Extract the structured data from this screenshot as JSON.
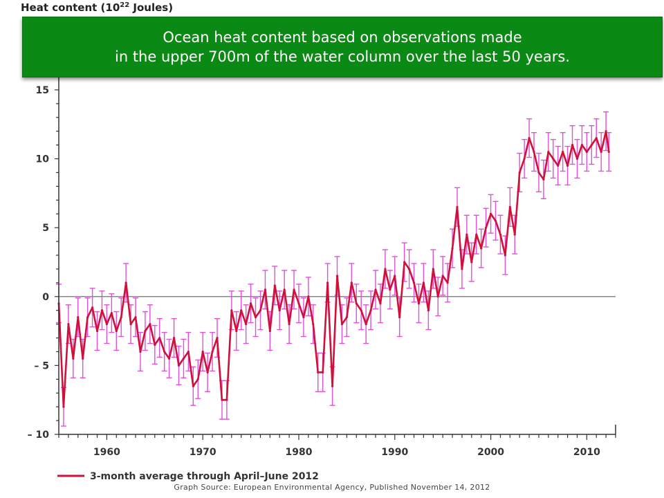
{
  "banner": {
    "line1": "Ocean heat content based on observations made",
    "line2": "in the upper 700m of the water column over the last 50 years."
  },
  "source": "Graph Source: European Environmental Agency, Published November 14, 2012",
  "colors": {
    "banner": "#0a8a14",
    "series_line": "#d0103a",
    "error_bars": "#e04fd8",
    "zero_line": "#888888",
    "axis": "#333333"
  },
  "chart_data": {
    "type": "line",
    "ylabel_main": "Heat content (10",
    "ylabel_exp": "22",
    "ylabel_unit": " Joules)",
    "xlim": [
      1955,
      2013
    ],
    "ylim": [
      -10,
      16
    ],
    "xticks": [
      1960,
      1970,
      1980,
      1990,
      2000,
      2010
    ],
    "xtick_labels": [
      "1960",
      "1970",
      "1980",
      "1990",
      "2000",
      "2010"
    ],
    "yticks": [
      -10,
      -5,
      0,
      5,
      10,
      15
    ],
    "ytick_labels": [
      "– 10",
      "– 5",
      "0",
      "5",
      "10",
      "15"
    ],
    "zero_line": true,
    "legend": {
      "position": "bottom-left"
    },
    "series": [
      {
        "name": "3-month average through April–June 2012",
        "color": "#d0103a",
        "x": [
          1955.0,
          1955.5,
          1956.0,
          1956.5,
          1957.0,
          1957.5,
          1958.0,
          1958.5,
          1959.0,
          1959.5,
          1960.0,
          1960.5,
          1961.0,
          1961.5,
          1962.0,
          1962.5,
          1963.0,
          1963.5,
          1964.0,
          1964.5,
          1965.0,
          1965.5,
          1966.0,
          1966.5,
          1967.0,
          1967.5,
          1968.0,
          1968.5,
          1969.0,
          1969.5,
          1970.0,
          1970.5,
          1971.0,
          1971.5,
          1972.0,
          1972.5,
          1973.0,
          1973.5,
          1974.0,
          1974.5,
          1975.0,
          1975.5,
          1976.0,
          1976.5,
          1977.0,
          1977.5,
          1978.0,
          1978.5,
          1979.0,
          1979.5,
          1980.0,
          1980.5,
          1981.0,
          1981.5,
          1982.0,
          1982.5,
          1983.0,
          1983.5,
          1984.0,
          1984.5,
          1985.0,
          1985.5,
          1986.0,
          1986.5,
          1987.0,
          1987.5,
          1988.0,
          1988.5,
          1989.0,
          1989.5,
          1990.0,
          1990.5,
          1991.0,
          1991.5,
          1992.0,
          1992.5,
          1993.0,
          1993.5,
          1994.0,
          1994.5,
          1995.0,
          1995.5,
          1996.0,
          1996.5,
          1997.0,
          1997.5,
          1998.0,
          1998.5,
          1999.0,
          1999.5,
          2000.0,
          2000.5,
          2001.0,
          2001.5,
          2002.0,
          2002.5,
          2003.0,
          2003.5,
          2004.0,
          2004.5,
          2005.0,
          2005.5,
          2006.0,
          2006.5,
          2007.0,
          2007.5,
          2008.0,
          2008.5,
          2009.0,
          2009.5,
          2010.0,
          2010.5,
          2011.0,
          2011.5,
          2012.0,
          2012.3
        ],
        "values": [
          -0.5,
          -8.0,
          -2.0,
          -4.5,
          -1.5,
          -4.5,
          -1.5,
          -0.8,
          -2.5,
          -1.0,
          -2.0,
          -1.2,
          -2.5,
          -1.5,
          1.0,
          -2.0,
          -1.5,
          -4.0,
          -2.5,
          -2.0,
          -3.5,
          -3.0,
          -4.0,
          -4.5,
          -3.0,
          -5.0,
          -4.5,
          -4.0,
          -6.5,
          -6.0,
          -4.0,
          -5.5,
          -4.0,
          -3.0,
          -7.5,
          -7.5,
          -1.0,
          -2.5,
          -1.0,
          -2.0,
          -0.5,
          -1.5,
          -1.0,
          0.5,
          -2.5,
          0.8,
          -1.0,
          0.5,
          -2.0,
          0.5,
          -0.5,
          -1.5,
          0.0,
          -2.0,
          -5.5,
          -5.5,
          1.0,
          -6.5,
          1.5,
          -2.0,
          -1.5,
          1.0,
          -0.5,
          -1.0,
          -2.0,
          -1.0,
          0.5,
          -0.5,
          2.0,
          0.5,
          1.5,
          -1.5,
          2.5,
          2.0,
          1.0,
          -0.5,
          1.0,
          -1.0,
          2.0,
          0.0,
          1.5,
          1.0,
          3.5,
          6.5,
          2.0,
          4.5,
          2.5,
          4.5,
          3.5,
          5.0,
          6.0,
          5.5,
          4.5,
          3.0,
          6.5,
          4.5,
          9.0,
          10.0,
          11.5,
          10.5,
          9.0,
          8.5,
          10.5,
          10.0,
          9.5,
          10.5,
          9.5,
          11.0,
          10.0,
          11.0,
          10.5,
          11.0,
          11.5,
          10.5,
          12.0,
          10.5
        ],
        "error": 1.4
      }
    ]
  }
}
